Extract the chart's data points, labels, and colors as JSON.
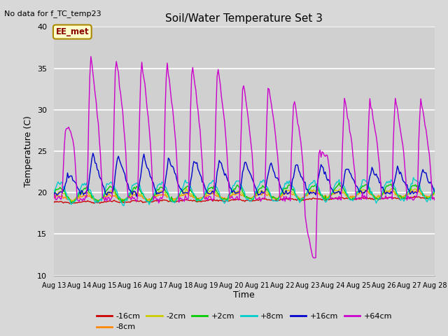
{
  "title": "Soil/Water Temperature Set 3",
  "ylabel": "Temperature (C)",
  "xlabel": "Time",
  "no_data_text": "No data for f_TC_temp23",
  "legend_label_text": "EE_met",
  "ylim": [
    10,
    40
  ],
  "yticks": [
    10,
    15,
    20,
    25,
    30,
    35,
    40
  ],
  "xlim": [
    0,
    15
  ],
  "xtick_labels": [
    "Aug 13",
    "Aug 14",
    "Aug 15",
    "Aug 16",
    "Aug 17",
    "Aug 18",
    "Aug 19",
    "Aug 20",
    "Aug 21",
    "Aug 22",
    "Aug 23",
    "Aug 24",
    "Aug 25",
    "Aug 26",
    "Aug 27",
    "Aug 28"
  ],
  "background_color": "#d8d8d8",
  "axes_bg_color": "#e0e0e0",
  "inner_bg_color": "#d0d0d0",
  "grid_color": "#ffffff",
  "series": {
    "m16cm": {
      "label": "-16cm",
      "color": "#cc0000"
    },
    "m8cm": {
      "label": "-8cm",
      "color": "#ff8800"
    },
    "m2cm": {
      "label": "-2cm",
      "color": "#cccc00"
    },
    "p2cm": {
      "label": "+2cm",
      "color": "#00cc00"
    },
    "p8cm": {
      "label": "+8cm",
      "color": "#00cccc"
    },
    "p16cm": {
      "label": "+16cm",
      "color": "#0000cc"
    },
    "p64cm": {
      "label": "+64cm",
      "color": "#cc00cc"
    }
  }
}
